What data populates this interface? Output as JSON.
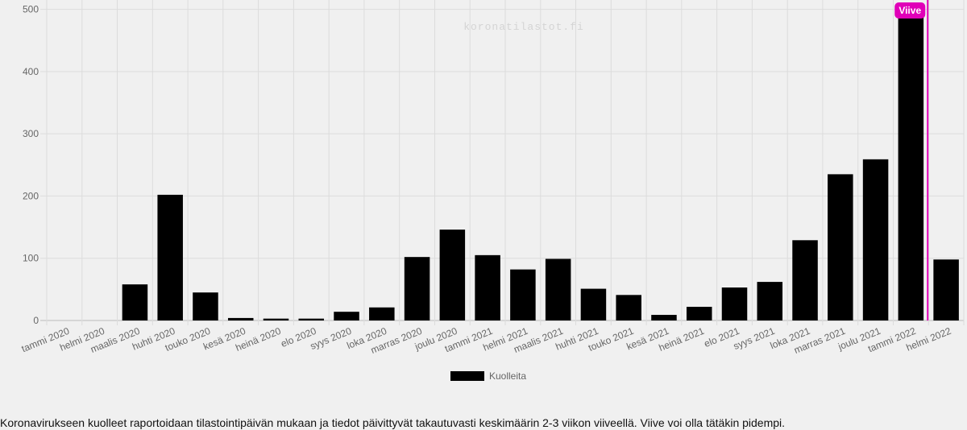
{
  "chart_data": {
    "type": "bar",
    "categories": [
      "tammi 2020",
      "helmi 2020",
      "maalis 2020",
      "huhti 2020",
      "touko 2020",
      "kesä 2020",
      "heinä 2020",
      "elo 2020",
      "syys 2020",
      "loka 2020",
      "marras 2020",
      "joulu 2020",
      "tammi 2021",
      "helmi 2021",
      "maalis 2021",
      "huhti 2021",
      "touko 2021",
      "kesä 2021",
      "heinä 2021",
      "elo 2021",
      "syys 2021",
      "loka 2021",
      "marras 2021",
      "joulu 2021",
      "tammi 2022",
      "helmi 2022"
    ],
    "series": [
      {
        "name": "Kuolleita",
        "color": "#000000",
        "values": [
          0,
          0,
          58,
          202,
          45,
          4,
          3,
          3,
          14,
          21,
          102,
          146,
          105,
          82,
          99,
          51,
          41,
          9,
          22,
          53,
          62,
          129,
          235,
          259,
          508,
          98
        ]
      }
    ],
    "yticks": [
      0,
      100,
      200,
      300,
      400,
      500
    ],
    "ylim": [
      0,
      515
    ],
    "grid": true,
    "legend": "bottom",
    "watermark": "koronatilastot.fi",
    "annotation": {
      "label": "Viive",
      "after_category": "tammi 2022",
      "color": "#e000b8"
    }
  },
  "caption": "Koronavirukseen kuolleet raportoidaan tilastointipäivän mukaan ja tiedot päivittyvät takautuvasti keskimäärin 2-3 viikon viiveellä. Viive voi olla tätäkin pidempi."
}
